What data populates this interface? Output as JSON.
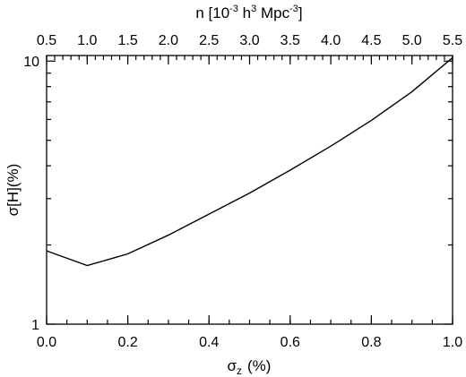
{
  "chart_data": {
    "type": "line",
    "title": "",
    "xlabel_main": "σ",
    "xlabel_sub": "z",
    "xlabel_tail": "(%)",
    "ylabel": "σ[H](%)",
    "xlim": [
      0.0,
      1.0
    ],
    "ylim": [
      1,
      10.5
    ],
    "yscale": "log",
    "grid": false,
    "x_ticks": [
      0.0,
      0.2,
      0.4,
      0.6,
      0.8,
      1.0
    ],
    "x_tick_labels": [
      "0.0",
      "0.2",
      "0.4",
      "0.6",
      "0.8",
      "1.0"
    ],
    "y_ticks": [
      1,
      10
    ],
    "y_tick_labels": [
      "1",
      "10"
    ],
    "top_axis": {
      "label_prefix": "n [10",
      "label_exp1": "-3",
      "label_mid": " h",
      "label_exp2": "3",
      "label_mid2": " Mpc",
      "label_exp3": "-3",
      "label_suffix": "]",
      "tick_labels": [
        "0.5",
        "1.0",
        "1.5",
        "2.0",
        "2.5",
        "3.0",
        "3.5",
        "4.0",
        "4.5",
        "5.0",
        "5.5"
      ],
      "range": [
        0.5,
        5.5
      ]
    },
    "series": [
      {
        "x": [
          0.0,
          0.1,
          0.2,
          0.3,
          0.4,
          0.5,
          0.6,
          0.7,
          0.8,
          0.9,
          1.0
        ],
        "values": [
          1.9,
          1.67,
          1.85,
          2.18,
          2.62,
          3.15,
          3.85,
          4.75,
          5.95,
          7.65,
          10.3
        ]
      }
    ]
  }
}
